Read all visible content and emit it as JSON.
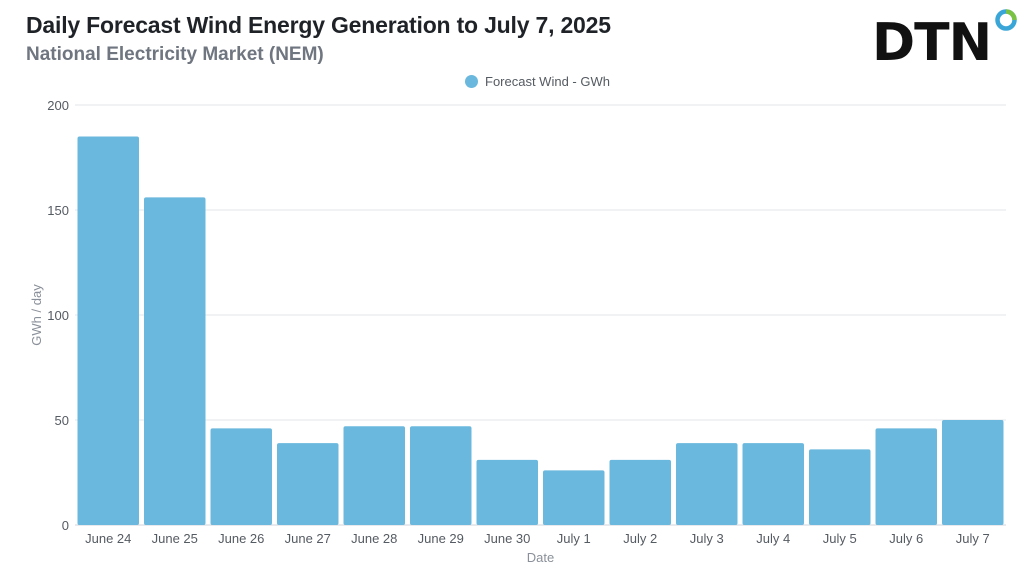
{
  "header": {
    "title": "Daily Forecast Wind Energy Generation to July 7, 2025",
    "subtitle": "National Electricity Market (NEM)",
    "logo_text": "DTN"
  },
  "colors": {
    "bar": "#6ab8dd",
    "grid": "#e3e5e8",
    "logo_text": "#111111",
    "logo_ring": "#3aa6d8",
    "logo_ring_accent": "#7cc242"
  },
  "legend": {
    "label": "Forecast Wind - GWh",
    "placement": "top-center"
  },
  "chart_data": {
    "type": "bar",
    "title": "Daily Forecast Wind Energy Generation to July 7, 2025",
    "subtitle": "National Electricity Market (NEM)",
    "xlabel": "Date",
    "ylabel": "GWh / day",
    "ylim": [
      0,
      200
    ],
    "yticks": [
      0,
      50,
      100,
      150,
      200
    ],
    "grid": true,
    "categories": [
      "June 24",
      "June 25",
      "June 26",
      "June 27",
      "June 28",
      "June 29",
      "June 30",
      "July 1",
      "July 2",
      "July 3",
      "July 4",
      "July 5",
      "July 6",
      "July 7"
    ],
    "series": [
      {
        "name": "Forecast Wind - GWh",
        "values": [
          185,
          156,
          46,
          39,
          47,
          47,
          31,
          26,
          31,
          39,
          39,
          36,
          46,
          50
        ]
      }
    ]
  }
}
